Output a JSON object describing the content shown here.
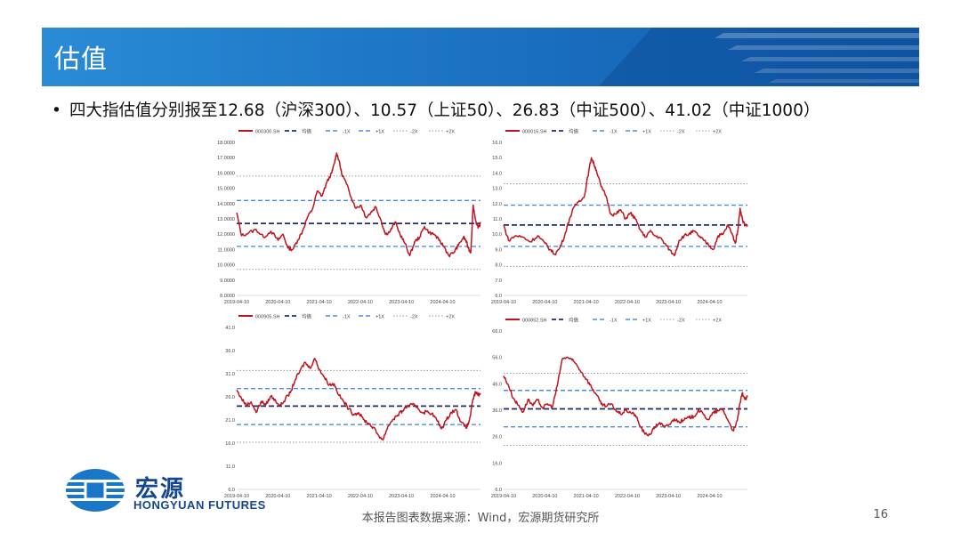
{
  "slide": {
    "title": "估值",
    "bullet": "四大指估值分别报至12.68（沪深300）、10.57（上证50）、26.83（中证500）、41.02（中证1000）",
    "footer_source": "本报告图表数据来源：Wind，宏源期货研究所",
    "page_number": "16",
    "logo": {
      "cn": "宏源",
      "en": "HONGYUAN FUTURES"
    }
  },
  "colors": {
    "header_blue": "#1a6fc0",
    "series_red": "#c0141c",
    "mean_navy": "#1f2d6b",
    "band_blue": "#4a90d9",
    "band_grey": "#9a9a9a"
  },
  "chart_data": [
    {
      "type": "line",
      "series_name": "000300.SH",
      "legend": [
        "000300.SH",
        "均值",
        "-1X",
        "+1X",
        "-2X",
        "+2X"
      ],
      "x_ticks": [
        "2019-04-10",
        "2020-04-10",
        "2021-04-10",
        "2022-04-10",
        "2023-04-10",
        "2024-04-10"
      ],
      "y_ticks": [
        "8.0000",
        "9.0000",
        "10.0000",
        "11.0000",
        "12.0000",
        "13.0000",
        "14.0000",
        "15.0000",
        "16.0000",
        "17.0000",
        "18.0000"
      ],
      "ylim": [
        8,
        18
      ],
      "mean": 12.7,
      "minus1": 11.2,
      "plus1": 14.2,
      "minus2": 9.7,
      "plus2": 15.8,
      "points": [
        [
          0,
          13.4
        ],
        [
          0.02,
          11.9
        ],
        [
          0.05,
          12.1
        ],
        [
          0.08,
          12.3
        ],
        [
          0.11,
          11.8
        ],
        [
          0.14,
          12.2
        ],
        [
          0.17,
          11.6
        ],
        [
          0.19,
          12.0
        ],
        [
          0.21,
          11.1
        ],
        [
          0.23,
          11.0
        ],
        [
          0.25,
          11.6
        ],
        [
          0.27,
          12.2
        ],
        [
          0.29,
          13.1
        ],
        [
          0.31,
          13.6
        ],
        [
          0.33,
          14.8
        ],
        [
          0.35,
          14.5
        ],
        [
          0.37,
          15.4
        ],
        [
          0.39,
          16.0
        ],
        [
          0.4,
          16.6
        ],
        [
          0.41,
          17.3
        ],
        [
          0.42,
          16.8
        ],
        [
          0.43,
          16.0
        ],
        [
          0.45,
          15.3
        ],
        [
          0.47,
          14.4
        ],
        [
          0.49,
          13.7
        ],
        [
          0.51,
          13.9
        ],
        [
          0.53,
          13.1
        ],
        [
          0.55,
          13.4
        ],
        [
          0.57,
          13.8
        ],
        [
          0.59,
          13.0
        ],
        [
          0.61,
          12.0
        ],
        [
          0.63,
          12.2
        ],
        [
          0.65,
          12.8
        ],
        [
          0.67,
          12.0
        ],
        [
          0.69,
          11.4
        ],
        [
          0.71,
          10.6
        ],
        [
          0.73,
          11.5
        ],
        [
          0.75,
          11.8
        ],
        [
          0.77,
          12.5
        ],
        [
          0.79,
          12.1
        ],
        [
          0.81,
          12.0
        ],
        [
          0.83,
          11.6
        ],
        [
          0.85,
          11.2
        ],
        [
          0.87,
          10.6
        ],
        [
          0.89,
          10.8
        ],
        [
          0.91,
          11.3
        ],
        [
          0.93,
          11.8
        ],
        [
          0.94,
          11.6
        ],
        [
          0.95,
          11.1
        ],
        [
          0.96,
          10.8
        ],
        [
          0.97,
          13.9
        ],
        [
          0.98,
          12.9
        ],
        [
          0.99,
          12.4
        ],
        [
          1.0,
          12.7
        ]
      ]
    },
    {
      "type": "line",
      "series_name": "000016.SH",
      "legend": [
        "000016.SH",
        "均值",
        "-1X",
        "+1X",
        "-2X",
        "+2X"
      ],
      "x_ticks": [
        "2019-04-10",
        "2020-04-10",
        "2021-04-10",
        "2022-04-10",
        "2023-04-10",
        "2024-04-10"
      ],
      "y_ticks": [
        "6.0",
        "7.0",
        "8.0",
        "9.0",
        "10.0",
        "11.0",
        "12.0",
        "13.0",
        "14.0",
        "15.0",
        "16.0"
      ],
      "ylim": [
        6,
        16
      ],
      "mean": 10.6,
      "minus1": 9.2,
      "plus1": 11.9,
      "minus2": 7.9,
      "plus2": 13.3,
      "points": [
        [
          0,
          10.6
        ],
        [
          0.02,
          9.6
        ],
        [
          0.05,
          9.9
        ],
        [
          0.08,
          9.8
        ],
        [
          0.11,
          9.5
        ],
        [
          0.14,
          9.9
        ],
        [
          0.17,
          9.4
        ],
        [
          0.19,
          9.0
        ],
        [
          0.21,
          8.7
        ],
        [
          0.23,
          9.1
        ],
        [
          0.25,
          9.9
        ],
        [
          0.27,
          11.0
        ],
        [
          0.29,
          11.8
        ],
        [
          0.31,
          12.2
        ],
        [
          0.33,
          12.4
        ],
        [
          0.35,
          14.2
        ],
        [
          0.36,
          15.0
        ],
        [
          0.37,
          14.6
        ],
        [
          0.38,
          14.2
        ],
        [
          0.4,
          13.1
        ],
        [
          0.42,
          12.5
        ],
        [
          0.44,
          11.3
        ],
        [
          0.46,
          11.3
        ],
        [
          0.48,
          11.6
        ],
        [
          0.5,
          11.0
        ],
        [
          0.52,
          11.4
        ],
        [
          0.54,
          11.0
        ],
        [
          0.56,
          10.3
        ],
        [
          0.58,
          9.8
        ],
        [
          0.6,
          10.2
        ],
        [
          0.62,
          9.9
        ],
        [
          0.64,
          9.8
        ],
        [
          0.66,
          9.4
        ],
        [
          0.68,
          9.0
        ],
        [
          0.7,
          8.6
        ],
        [
          0.72,
          9.6
        ],
        [
          0.74,
          9.9
        ],
        [
          0.76,
          10.0
        ],
        [
          0.78,
          10.2
        ],
        [
          0.8,
          9.9
        ],
        [
          0.82,
          9.6
        ],
        [
          0.84,
          9.3
        ],
        [
          0.86,
          9.0
        ],
        [
          0.88,
          9.9
        ],
        [
          0.9,
          10.0
        ],
        [
          0.92,
          10.6
        ],
        [
          0.94,
          9.9
        ],
        [
          0.95,
          9.4
        ],
        [
          0.96,
          10.2
        ],
        [
          0.97,
          11.7
        ],
        [
          0.98,
          10.9
        ],
        [
          0.99,
          10.6
        ],
        [
          1.0,
          10.6
        ]
      ]
    },
    {
      "type": "line",
      "series_name": "000905.SH",
      "legend": [
        "000905.SH",
        "均值",
        "-1X",
        "+1X",
        "-2X",
        "+2X"
      ],
      "x_ticks": [
        "2019-04-10",
        "2020-04-10",
        "2021-04-10",
        "2022-04-10",
        "2023-04-10",
        "2024-04-10"
      ],
      "y_ticks": [
        "6.0",
        "11.0",
        "16.0",
        "21.0",
        "26.0",
        "31.0",
        "36.0",
        "41.0"
      ],
      "ylim": [
        6,
        41
      ],
      "mean": 24.0,
      "minus1": 20.0,
      "plus1": 27.8,
      "minus2": 16.2,
      "plus2": 31.7,
      "points": [
        [
          0,
          27.5
        ],
        [
          0.02,
          25.6
        ],
        [
          0.04,
          24.2
        ],
        [
          0.06,
          24.9
        ],
        [
          0.08,
          22.6
        ],
        [
          0.1,
          25.0
        ],
        [
          0.12,
          24.3
        ],
        [
          0.14,
          26.2
        ],
        [
          0.16,
          25.1
        ],
        [
          0.18,
          24.1
        ],
        [
          0.2,
          25.6
        ],
        [
          0.22,
          26.9
        ],
        [
          0.24,
          29.7
        ],
        [
          0.26,
          31.6
        ],
        [
          0.28,
          33.5
        ],
        [
          0.3,
          32.2
        ],
        [
          0.32,
          34.3
        ],
        [
          0.34,
          31.9
        ],
        [
          0.36,
          30.2
        ],
        [
          0.38,
          28.6
        ],
        [
          0.4,
          28.8
        ],
        [
          0.42,
          26.3
        ],
        [
          0.44,
          24.9
        ],
        [
          0.46,
          23.4
        ],
        [
          0.48,
          22.2
        ],
        [
          0.5,
          22.6
        ],
        [
          0.52,
          21.1
        ],
        [
          0.54,
          20.3
        ],
        [
          0.56,
          19.4
        ],
        [
          0.58,
          17.8
        ],
        [
          0.6,
          16.7
        ],
        [
          0.62,
          19.6
        ],
        [
          0.64,
          21.1
        ],
        [
          0.66,
          22.0
        ],
        [
          0.68,
          23.0
        ],
        [
          0.7,
          24.0
        ],
        [
          0.72,
          24.3
        ],
        [
          0.74,
          23.8
        ],
        [
          0.76,
          22.6
        ],
        [
          0.78,
          22.8
        ],
        [
          0.8,
          22.4
        ],
        [
          0.82,
          21.1
        ],
        [
          0.84,
          19.1
        ],
        [
          0.86,
          21.0
        ],
        [
          0.88,
          22.7
        ],
        [
          0.9,
          23.2
        ],
        [
          0.92,
          20.6
        ],
        [
          0.94,
          19.3
        ],
        [
          0.95,
          20.1
        ],
        [
          0.96,
          22.4
        ],
        [
          0.97,
          25.6
        ],
        [
          0.98,
          27.0
        ],
        [
          0.99,
          26.4
        ],
        [
          1.0,
          26.8
        ]
      ]
    },
    {
      "type": "line",
      "series_name": "000852.SH",
      "legend": [
        "000852.SH",
        "均值",
        "-1X",
        "+1X",
        "-2X",
        "+2X"
      ],
      "x_ticks": [
        "2019-04-10",
        "2020-04-10",
        "2021-04-10",
        "2022-04-10",
        "2023-04-10",
        "2024-04-10"
      ],
      "y_ticks": [
        "6.0",
        "16.0",
        "26.0",
        "36.0",
        "46.0",
        "56.0",
        "66.0"
      ],
      "ylim": [
        6,
        66
      ],
      "mean": 36.5,
      "minus1": 29.7,
      "plus1": 43.5,
      "minus2": 22.7,
      "plus2": 50.0,
      "points": [
        [
          0,
          49.0
        ],
        [
          0.02,
          45.4
        ],
        [
          0.04,
          40.5
        ],
        [
          0.06,
          37.9
        ],
        [
          0.08,
          35.3
        ],
        [
          0.1,
          40.1
        ],
        [
          0.12,
          37.7
        ],
        [
          0.14,
          39.9
        ],
        [
          0.16,
          36.8
        ],
        [
          0.18,
          38.4
        ],
        [
          0.2,
          37.2
        ],
        [
          0.22,
          45.3
        ],
        [
          0.24,
          55.3
        ],
        [
          0.26,
          56.1
        ],
        [
          0.28,
          55.0
        ],
        [
          0.3,
          53.2
        ],
        [
          0.32,
          50.3
        ],
        [
          0.34,
          47.7
        ],
        [
          0.36,
          44.8
        ],
        [
          0.38,
          42.0
        ],
        [
          0.4,
          38.3
        ],
        [
          0.42,
          37.4
        ],
        [
          0.44,
          38.4
        ],
        [
          0.46,
          36.0
        ],
        [
          0.48,
          34.5
        ],
        [
          0.5,
          36.0
        ],
        [
          0.52,
          35.2
        ],
        [
          0.54,
          34.2
        ],
        [
          0.56,
          30.0
        ],
        [
          0.58,
          26.9
        ],
        [
          0.6,
          26.8
        ],
        [
          0.62,
          29.6
        ],
        [
          0.64,
          31.3
        ],
        [
          0.66,
          29.5
        ],
        [
          0.68,
          30.6
        ],
        [
          0.7,
          32.7
        ],
        [
          0.72,
          31.6
        ],
        [
          0.74,
          32.3
        ],
        [
          0.76,
          33.2
        ],
        [
          0.78,
          33.6
        ],
        [
          0.8,
          36.1
        ],
        [
          0.82,
          34.3
        ],
        [
          0.84,
          32.4
        ],
        [
          0.86,
          35.0
        ],
        [
          0.88,
          35.8
        ],
        [
          0.9,
          36.2
        ],
        [
          0.92,
          32.2
        ],
        [
          0.94,
          28.4
        ],
        [
          0.95,
          29.5
        ],
        [
          0.96,
          33.0
        ],
        [
          0.97,
          38.8
        ],
        [
          0.98,
          42.6
        ],
        [
          0.99,
          40.0
        ],
        [
          1.0,
          41.0
        ]
      ]
    }
  ]
}
